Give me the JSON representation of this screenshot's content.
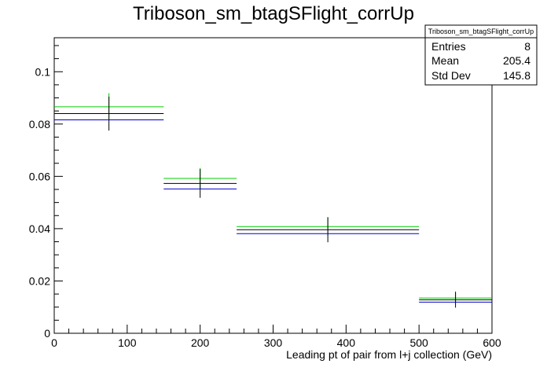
{
  "title": "Triboson_sm_btagSFlight_corrUp",
  "stats": {
    "name": "Triboson_sm_btagSFlight_corrUp",
    "rows": [
      {
        "label": "Entries",
        "value": "8"
      },
      {
        "label": "Mean",
        "value": "205.4"
      },
      {
        "label": "Std Dev",
        "value": "145.8"
      }
    ]
  },
  "chart_data": {
    "type": "line",
    "title": "Triboson_sm_btagSFlight_corrUp",
    "xlabel": "Leading pt of pair from l+j collection (GeV)",
    "ylabel": "",
    "xlim": [
      0,
      600
    ],
    "ylim": [
      0,
      0.113
    ],
    "x_ticks": [
      0,
      100,
      200,
      300,
      400,
      500,
      600
    ],
    "x_tick_labels": [
      "0",
      "100",
      "200",
      "300",
      "400",
      "500",
      "600"
    ],
    "y_ticks": [
      0,
      0.02,
      0.04,
      0.06,
      0.08,
      0.1
    ],
    "y_tick_labels": [
      "0",
      "0.02",
      "0.04",
      "0.06",
      "0.08",
      "0.1"
    ],
    "grid": false,
    "bins": [
      {
        "low": 0,
        "high": 150,
        "center": 75
      },
      {
        "low": 150,
        "high": 250,
        "center": 200
      },
      {
        "low": 250,
        "high": 500,
        "center": 375
      },
      {
        "low": 500,
        "high": 600,
        "center": 550
      }
    ],
    "series": [
      {
        "color": "#00cc00",
        "values": [
          0.0866,
          0.0592,
          0.0408,
          0.0135
        ],
        "errors": [
          0.0052,
          0.004,
          0.0035,
          0.0025
        ]
      },
      {
        "color": "#000000",
        "values": [
          0.084,
          0.0573,
          0.0396,
          0.0128
        ],
        "errors": [
          0.0065,
          0.0055,
          0.0048,
          0.003
        ]
      },
      {
        "color": "#0000cc",
        "values": [
          0.0816,
          0.0552,
          0.0381,
          0.0119
        ],
        "errors": [
          0,
          0,
          0,
          0
        ]
      }
    ],
    "legend": "none"
  }
}
